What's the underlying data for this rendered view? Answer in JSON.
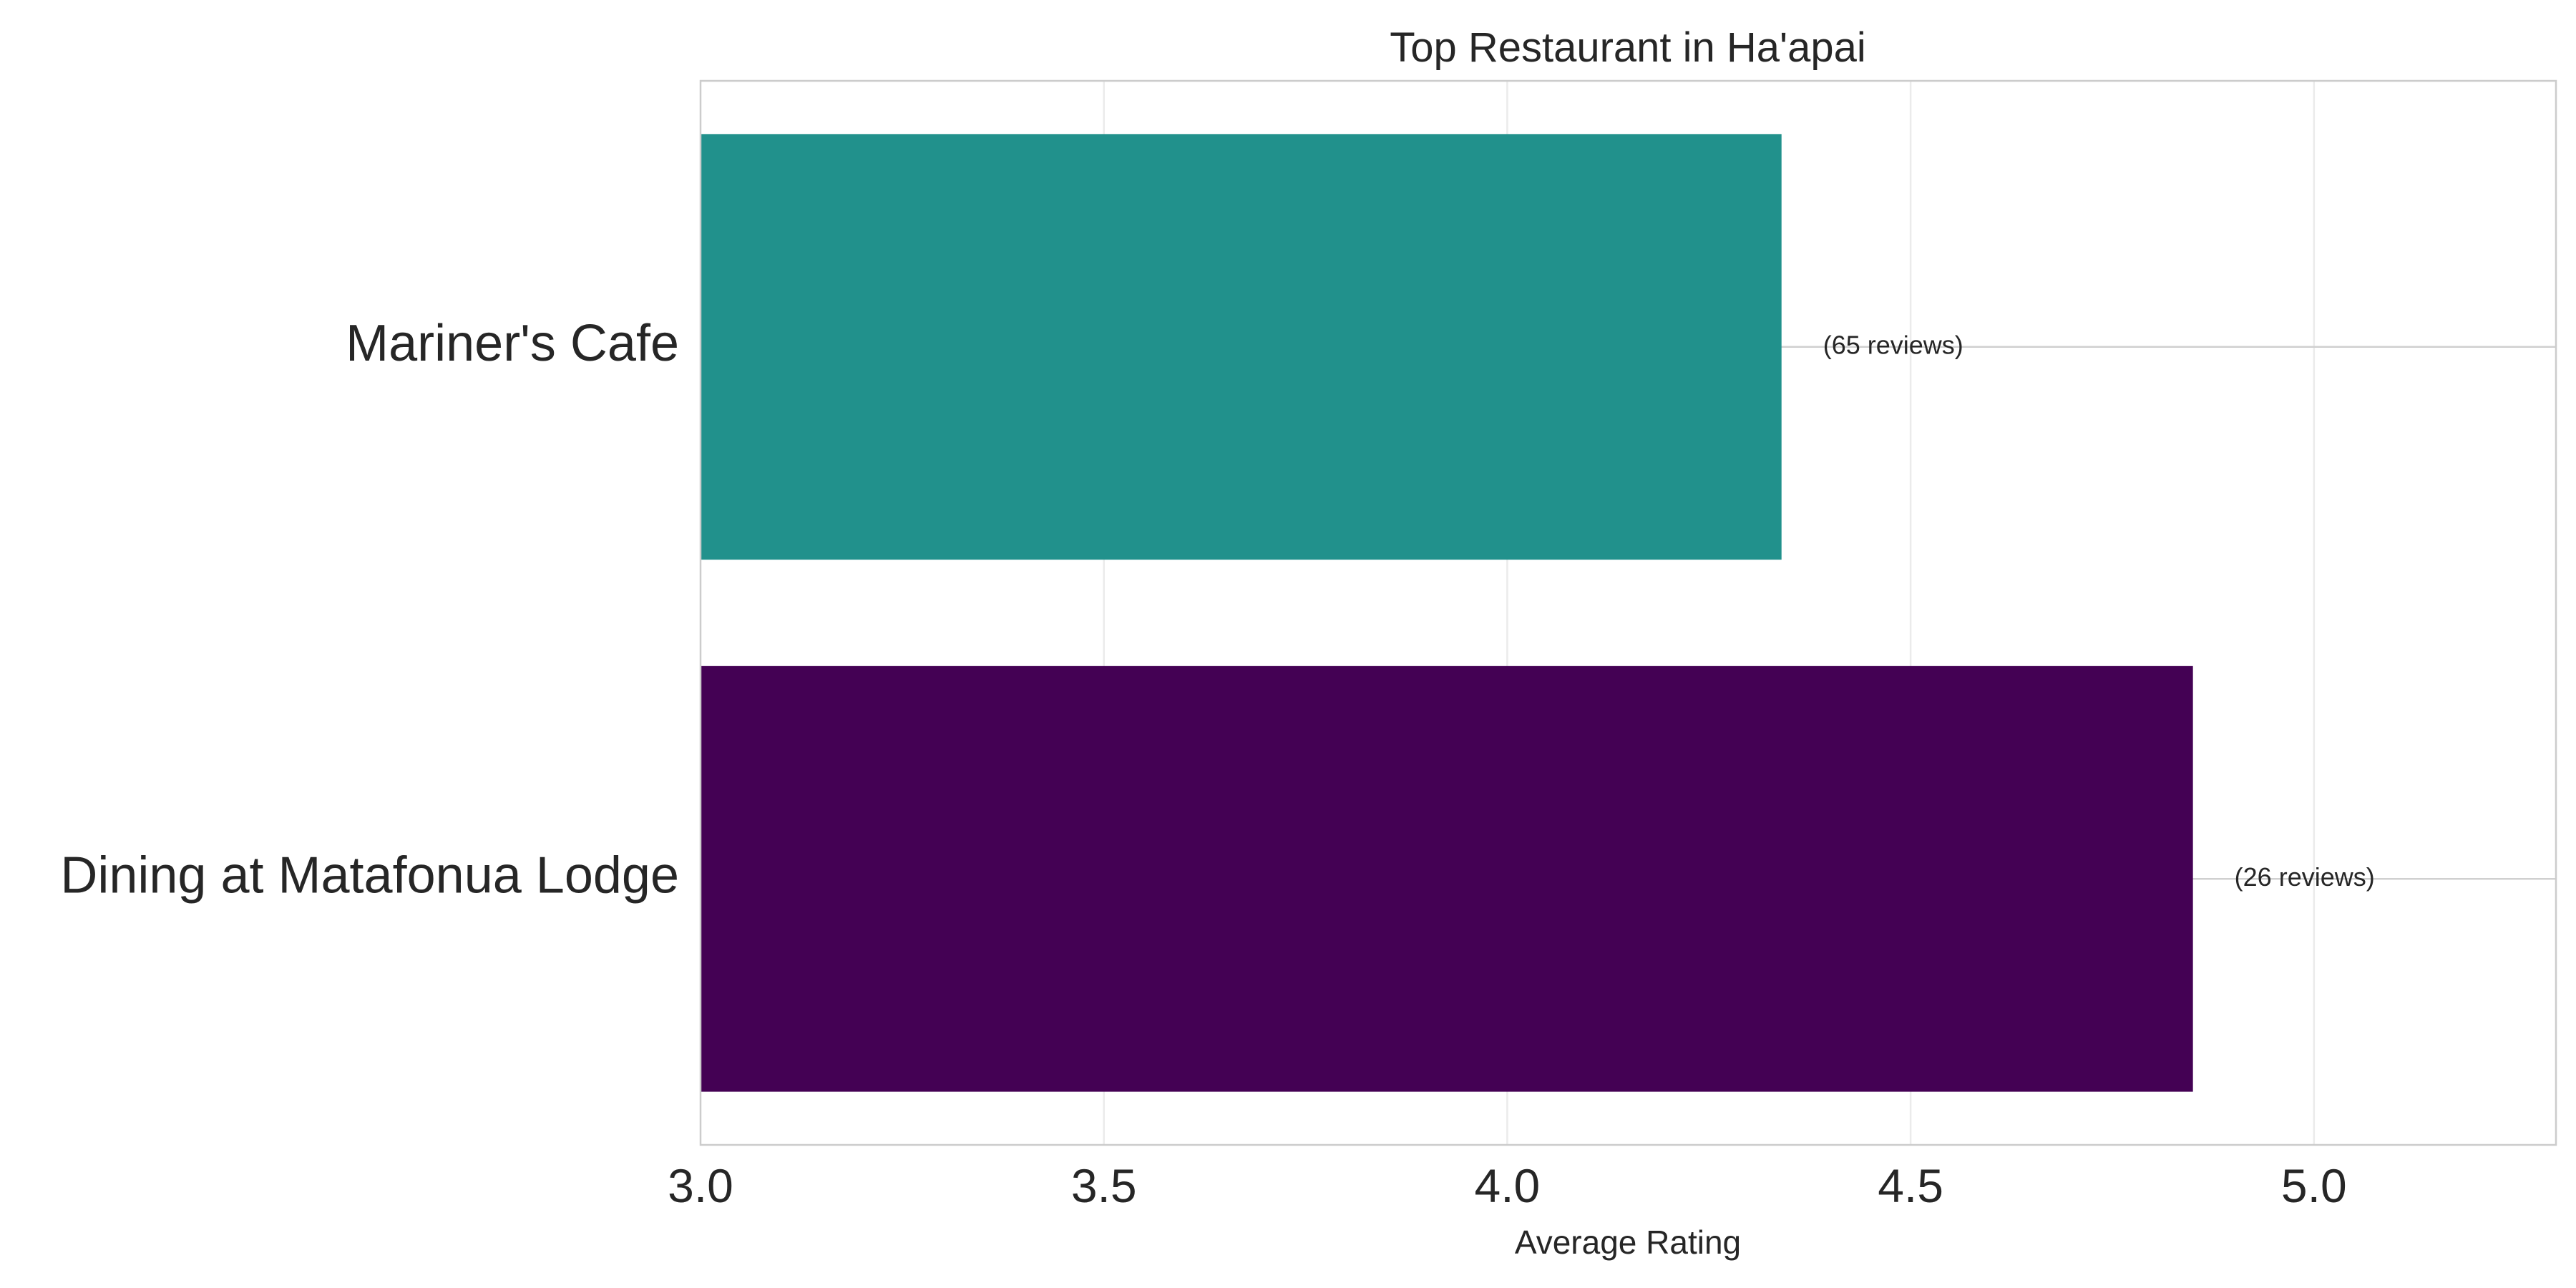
{
  "chart_data": {
    "type": "bar",
    "orientation": "horizontal",
    "title": "Top Restaurant in Ha'apai",
    "xlabel": "Average Rating",
    "ylabel": "",
    "xlim": [
      3.0,
      5.3
    ],
    "x_ticks": [
      3.0,
      3.5,
      4.0,
      4.5,
      5.0
    ],
    "x_tick_labels": [
      "3.0",
      "3.5",
      "4.0",
      "4.5",
      "5.0"
    ],
    "grid": true,
    "categories": [
      "Mariner's Cafe",
      "Dining at Matafonua Lodge"
    ],
    "values": [
      4.34,
      4.85
    ],
    "data_labels": [
      "(65 reviews)",
      "(26 reviews)"
    ],
    "bar_colors": [
      "#21918c",
      "#440154"
    ]
  }
}
